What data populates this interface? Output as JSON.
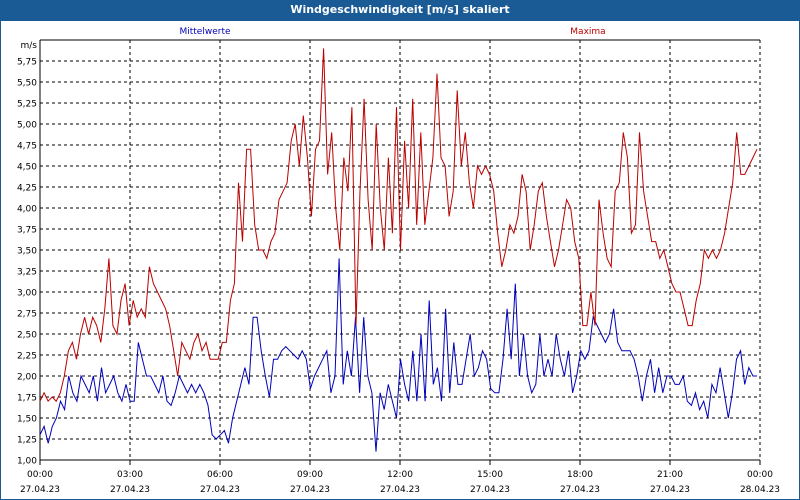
{
  "window": {
    "title": "Windgeschwindigkeit [m/s] skaliert"
  },
  "chart_data": {
    "type": "line",
    "unit_label": "m/s",
    "ylim": [
      1.0,
      6.0
    ],
    "y_ticks": [
      "5,75",
      "5,50",
      "5,25",
      "5,00",
      "4,75",
      "4,50",
      "4,25",
      "4,00",
      "3,75",
      "3,50",
      "3,25",
      "3,00",
      "2,75",
      "2,50",
      "2,25",
      "2,00",
      "1,75",
      "1,50",
      "1,25",
      "1,00"
    ],
    "y_tick_values": [
      5.75,
      5.5,
      5.25,
      5.0,
      4.75,
      4.5,
      4.25,
      4.0,
      3.75,
      3.5,
      3.25,
      3.0,
      2.75,
      2.5,
      2.25,
      2.0,
      1.75,
      1.5,
      1.25,
      1.0
    ],
    "xlim": [
      0,
      24
    ],
    "x_ticks": [
      {
        "value": 0,
        "time": "00:00",
        "date": "27.04.23"
      },
      {
        "value": 3,
        "time": "03:00",
        "date": "27.04.23"
      },
      {
        "value": 6,
        "time": "06:00",
        "date": "27.04.23"
      },
      {
        "value": 9,
        "time": "09:00",
        "date": "27.04.23"
      },
      {
        "value": 12,
        "time": "12:00",
        "date": "27.04.23"
      },
      {
        "value": 15,
        "time": "15:00",
        "date": "27.04.23"
      },
      {
        "value": 18,
        "time": "18:00",
        "date": "27.04.23"
      },
      {
        "value": 21,
        "time": "21:00",
        "date": "27.04.23"
      },
      {
        "value": 24,
        "time": "00:00",
        "date": "28.04.23"
      }
    ],
    "grid": true,
    "series": [
      {
        "name": "Mittelwerte",
        "color": "#0000bb",
        "label_position": "top-left",
        "values": [
          1.3,
          1.4,
          1.2,
          1.4,
          1.5,
          1.7,
          1.6,
          2.0,
          1.8,
          1.7,
          2.0,
          1.9,
          1.8,
          2.0,
          1.7,
          2.1,
          1.8,
          1.9,
          2.0,
          1.8,
          1.7,
          1.9,
          1.7,
          1.7,
          2.4,
          2.2,
          2.0,
          2.0,
          1.9,
          1.8,
          2.0,
          1.7,
          1.65,
          1.8,
          2.0,
          1.9,
          1.8,
          1.9,
          1.8,
          1.9,
          1.8,
          1.65,
          1.3,
          1.25,
          1.3,
          1.35,
          1.2,
          1.5,
          1.7,
          1.9,
          2.1,
          1.9,
          2.7,
          2.7,
          2.3,
          2.0,
          1.75,
          2.2,
          2.2,
          2.3,
          2.35,
          2.3,
          2.25,
          2.2,
          2.3,
          2.2,
          1.85,
          2.0,
          2.1,
          2.2,
          2.3,
          1.8,
          2.0,
          3.4,
          1.9,
          2.3,
          2.0,
          2.7,
          1.8,
          2.7,
          2.0,
          1.8,
          1.1,
          1.8,
          1.6,
          1.9,
          1.7,
          1.5,
          2.2,
          1.9,
          1.7,
          2.3,
          1.7,
          2.5,
          1.7,
          2.9,
          1.9,
          2.1,
          1.7,
          2.8,
          1.8,
          2.4,
          1.9,
          1.9,
          2.2,
          2.5,
          2.0,
          2.1,
          2.3,
          2.2,
          1.85,
          1.8,
          1.8,
          2.2,
          2.8,
          2.2,
          3.1,
          2.0,
          2.5,
          2.0,
          1.8,
          1.9,
          2.5,
          2.0,
          2.2,
          2.0,
          2.5,
          2.2,
          2.0,
          2.3,
          1.8,
          2.0,
          2.3,
          2.2,
          2.3,
          2.7,
          2.6,
          2.5,
          2.4,
          2.5,
          2.8,
          2.4,
          2.3,
          2.3,
          2.3,
          2.2,
          2.0,
          1.7,
          2.0,
          2.2,
          1.8,
          2.1,
          1.8,
          2.0,
          2.0,
          1.9,
          1.9,
          2.0,
          1.7,
          1.65,
          1.8,
          1.6,
          1.7,
          1.5,
          1.9,
          1.8,
          2.1,
          1.8,
          1.5,
          1.8,
          2.2,
          2.3,
          1.9,
          2.1,
          2.0,
          2.0
        ]
      },
      {
        "name": "Maxima",
        "color": "#bb0000",
        "label_position": "top-right",
        "values": [
          1.7,
          1.8,
          1.7,
          1.75,
          1.7,
          1.8,
          2.0,
          2.3,
          2.4,
          2.2,
          2.5,
          2.7,
          2.5,
          2.7,
          2.6,
          2.4,
          2.8,
          3.4,
          2.6,
          2.5,
          2.9,
          3.1,
          2.6,
          2.9,
          2.7,
          2.8,
          2.7,
          3.3,
          3.1,
          3.0,
          2.9,
          2.8,
          2.6,
          2.3,
          2.0,
          2.4,
          2.3,
          2.2,
          2.4,
          2.5,
          2.3,
          2.4,
          2.2,
          2.2,
          2.2,
          2.4,
          2.4,
          2.9,
          3.1,
          4.3,
          3.6,
          4.7,
          4.7,
          3.8,
          3.5,
          3.5,
          3.4,
          3.6,
          3.7,
          4.1,
          4.2,
          4.3,
          4.8,
          5.0,
          4.5,
          5.1,
          4.6,
          3.9,
          4.7,
          4.8,
          5.9,
          4.4,
          4.9,
          4.0,
          3.5,
          4.6,
          4.2,
          5.2,
          2.6,
          4.2,
          5.3,
          4.1,
          3.5,
          5.0,
          4.0,
          3.5,
          4.6,
          3.7,
          5.2,
          3.5,
          4.8,
          4.0,
          5.3,
          3.8,
          4.9,
          3.8,
          4.2,
          4.6,
          5.6,
          4.6,
          4.5,
          3.9,
          4.2,
          5.4,
          4.5,
          4.9,
          4.3,
          4.0,
          4.5,
          4.4,
          4.5,
          4.4,
          4.2,
          3.7,
          3.3,
          3.5,
          3.8,
          3.7,
          3.9,
          4.4,
          4.2,
          3.5,
          3.8,
          4.2,
          4.3,
          3.9,
          3.6,
          3.3,
          3.5,
          3.8,
          4.1,
          4.0,
          3.6,
          3.4,
          2.6,
          2.6,
          3.0,
          2.6,
          4.1,
          3.7,
          3.4,
          3.3,
          4.2,
          4.3,
          4.9,
          4.6,
          3.7,
          3.8,
          4.9,
          4.2,
          3.9,
          3.6,
          3.6,
          3.4,
          3.5,
          3.3,
          3.1,
          3.0,
          3.0,
          2.8,
          2.6,
          2.6,
          2.9,
          3.1,
          3.5,
          3.4,
          3.5,
          3.4,
          3.5,
          3.7,
          4.0,
          4.3,
          4.9,
          4.4,
          4.4,
          4.5,
          4.6,
          4.7
        ]
      }
    ]
  }
}
